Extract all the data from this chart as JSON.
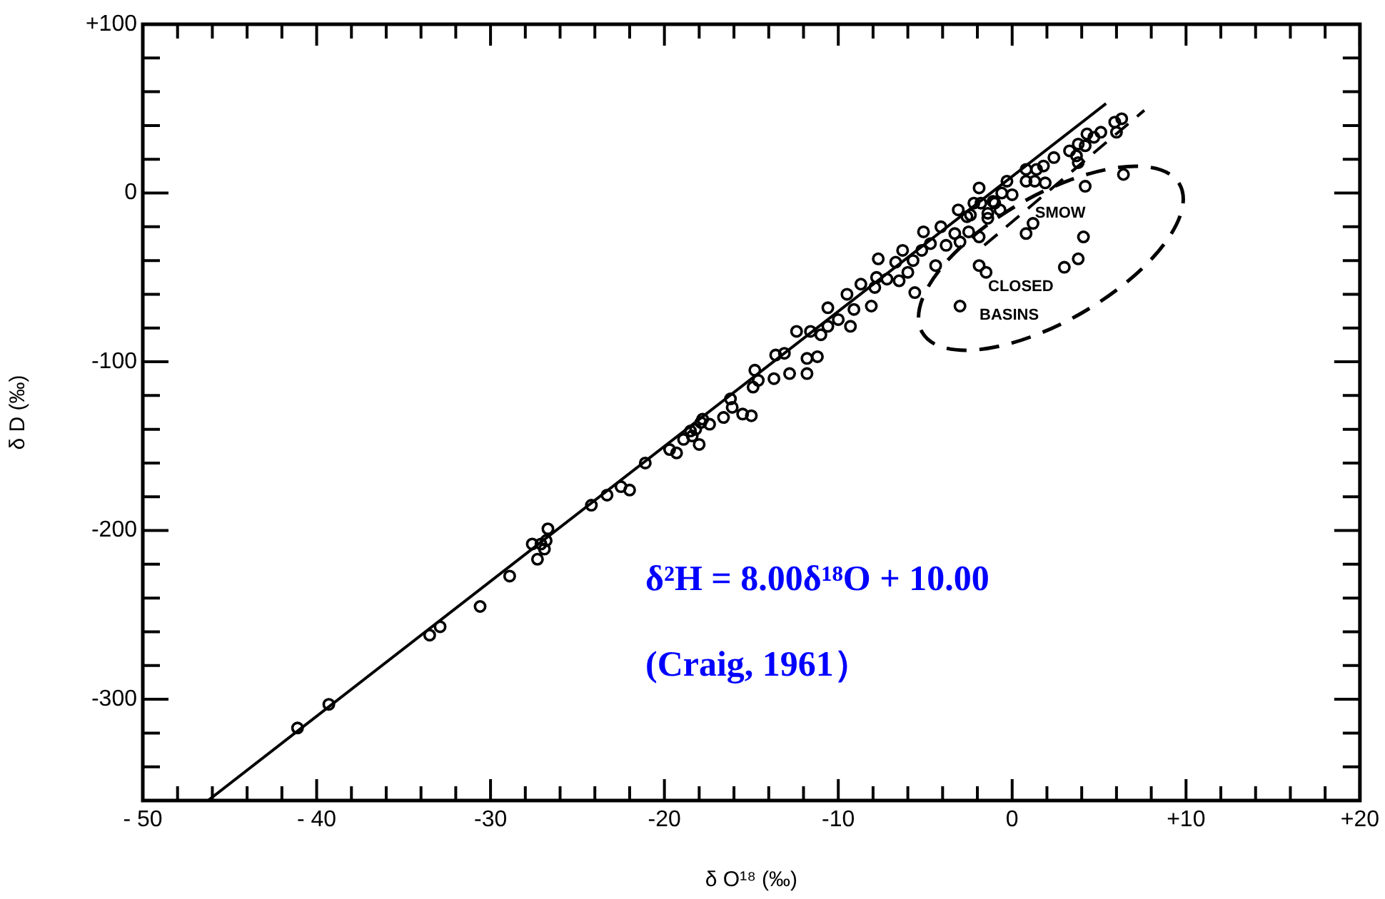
{
  "chart_data": {
    "type": "scatter",
    "xlabel": "δ O¹⁸ (‰)",
    "ylabel": "δ D (‰)",
    "xlim": [
      -50,
      20
    ],
    "ylim": [
      -360,
      100
    ],
    "xticks": [
      {
        "value": -50,
        "label": "- 50"
      },
      {
        "value": -48,
        "label": null
      },
      {
        "value": -46,
        "label": null
      },
      {
        "value": -44,
        "label": null
      },
      {
        "value": -42,
        "label": null
      },
      {
        "value": -40,
        "label": "- 40"
      },
      {
        "value": -38,
        "label": null
      },
      {
        "value": -36,
        "label": null
      },
      {
        "value": -34,
        "label": null
      },
      {
        "value": -32,
        "label": null
      },
      -30,
      {
        "value": -28,
        "label": null
      },
      {
        "value": -26,
        "label": null
      },
      {
        "value": -24,
        "label": null
      },
      {
        "value": -22,
        "label": null
      },
      -20,
      {
        "value": -18,
        "label": null
      },
      {
        "value": -16,
        "label": null
      },
      {
        "value": -14,
        "label": null
      },
      {
        "value": -12,
        "label": null
      },
      -10,
      {
        "value": -8,
        "label": null
      },
      {
        "value": -6,
        "label": null
      },
      {
        "value": -4,
        "label": null
      },
      {
        "value": -2,
        "label": null
      },
      0,
      {
        "value": 2,
        "label": null
      },
      {
        "value": 4,
        "label": null
      },
      {
        "value": 6,
        "label": null
      },
      {
        "value": 8,
        "label": null
      },
      {
        "value": 10,
        "label": "+10"
      },
      {
        "value": 12,
        "label": null
      },
      {
        "value": 14,
        "label": null
      },
      {
        "value": 16,
        "label": null
      },
      {
        "value": 18,
        "label": null
      },
      {
        "value": 20,
        "label": "+20"
      }
    ],
    "yticks": [
      {
        "value": -340,
        "label": null
      },
      {
        "value": -320,
        "label": null
      },
      -300,
      {
        "value": -280,
        "label": null
      },
      {
        "value": -260,
        "label": null
      },
      {
        "value": -240,
        "label": null
      },
      {
        "value": -220,
        "label": null
      },
      -200,
      {
        "value": -180,
        "label": null
      },
      {
        "value": -160,
        "label": null
      },
      {
        "value": -140,
        "label": null
      },
      {
        "value": -120,
        "label": null
      },
      -100,
      {
        "value": -80,
        "label": null
      },
      {
        "value": -60,
        "label": null
      },
      {
        "value": -40,
        "label": null
      },
      {
        "value": -20,
        "label": null
      },
      0,
      {
        "value": 20,
        "label": null
      },
      {
        "value": 40,
        "label": null
      },
      {
        "value": 60,
        "label": null
      },
      {
        "value": 80,
        "label": null
      },
      {
        "value": 100,
        "label": "+100"
      }
    ],
    "grid": false,
    "legend": false,
    "marker": "circle",
    "series": [
      {
        "type": "scatter",
        "color": "#000000",
        "x": [
          -41.1,
          -39.3,
          -33.5,
          -32.9,
          -30.6,
          -28.9,
          -27.6,
          -27.3,
          -27.1,
          -26.8,
          -26.7,
          -26.9,
          -24.2,
          -23.3,
          -22.5,
          -22.0,
          -21.1,
          -19.7,
          -19.3,
          -18.9,
          -18.4,
          -18.0,
          -17.9,
          -17.4,
          -18.2,
          -18.5,
          -17.8,
          -16.6,
          -16.1,
          -16.2,
          -15.5,
          -15.0,
          -14.9,
          -14.8,
          -14.6,
          -13.7,
          -12.8,
          -11.8,
          -13.6,
          -13.1,
          -11.8,
          -11.2,
          -12.4,
          -11.6,
          -11.0,
          -10.6,
          -10.6,
          -10.0,
          -9.3,
          -9.5,
          -9.1,
          -8.7,
          -8.1,
          -7.9,
          -7.8,
          -7.7,
          -7.2,
          -6.7,
          -6.5,
          -6.3,
          -6.0,
          -5.7,
          -5.6,
          -5.2,
          -5.1,
          -4.7,
          -4.4,
          -4.1,
          -3.8,
          -3.3,
          -3.1,
          -3.0,
          -3.0,
          -2.5,
          -2.4,
          -1.9,
          -1.9,
          -1.8,
          -1.4,
          -1.0,
          -0.6,
          -1.9,
          -1.5,
          -2.2,
          -2.6,
          -1.1,
          -1.4,
          -0.7,
          -0.3,
          0,
          0.8,
          1.3,
          1.9,
          0.8,
          1.4,
          1.8,
          2.4,
          3.3,
          3.7,
          3.8,
          3.8,
          4.2,
          4.3,
          4.7,
          5.1,
          6.0,
          5.9,
          6.3,
          6.4,
          4.2,
          1.2,
          0.8,
          4.1,
          3.8,
          3.0
        ],
        "values": [
          -317,
          -303,
          -262,
          -257,
          -245,
          -227,
          -208,
          -217,
          -208,
          -206,
          -199,
          -211,
          -185,
          -179,
          -174,
          -176,
          -160,
          -152,
          -154,
          -146,
          -144,
          -149,
          -136,
          -137,
          -140,
          -141,
          -134,
          -133,
          -127,
          -122,
          -131,
          -132,
          -115,
          -105,
          -111,
          -110,
          -107,
          -107,
          -96,
          -95,
          -98,
          -97,
          -82,
          -82,
          -84,
          -79,
          -68,
          -75,
          -79,
          -60,
          -69,
          -54,
          -67,
          -56,
          -50,
          -39,
          -51,
          -41,
          -52,
          -34,
          -47,
          -40,
          -59,
          -34,
          -23,
          -30,
          -43,
          -20,
          -31,
          -24,
          -10,
          -29,
          -67,
          -23,
          -13,
          3,
          -26,
          -6,
          -15,
          -6,
          0,
          -43,
          -47,
          -6,
          -14,
          -5,
          -12,
          -10,
          7,
          -1,
          7,
          7,
          6,
          14,
          14,
          16,
          21,
          25,
          22,
          18,
          29,
          28,
          35,
          33,
          36,
          36,
          42,
          44,
          11,
          4,
          -18,
          -24,
          -26,
          -39,
          -44
        ]
      },
      {
        "type": "line",
        "color": "#000000",
        "marker": "none",
        "line_style": "solid",
        "x": [
          -46.25,
          5.4
        ],
        "values": [
          -360,
          53
        ]
      },
      {
        "type": "line",
        "color": "#000000",
        "marker": "none",
        "line_style": "dashed",
        "x": [
          -1.6,
          7.6
        ],
        "values": [
          -31,
          49
        ]
      }
    ],
    "annotations": [
      {
        "text": "SMOW",
        "x": 0,
        "y": 0
      },
      "CLOSED BASINS",
      "δ²H = 8.00δ¹⁸O + 10.00",
      "(Craig, 1961）"
    ]
  }
}
